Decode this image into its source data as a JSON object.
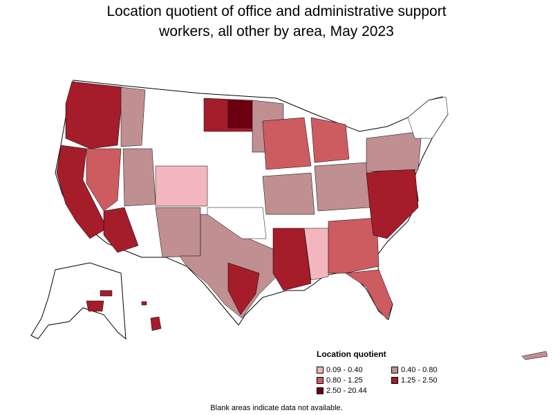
{
  "title_line1": "Location quotient of office and administrative support",
  "title_line2": "workers, all other by area, May 2023",
  "legend": {
    "title": "Location quotient",
    "items": [
      {
        "label": "0.09 - 0.40",
        "color": "#f4b6be"
      },
      {
        "label": "0.40 - 0.80",
        "color": "#bf8f91"
      },
      {
        "label": "0.80 - 1.25",
        "color": "#cc5c60"
      },
      {
        "label": "1.25 - 2.50",
        "color": "#a51c2a"
      },
      {
        "label": "2.50 - 20.44",
        "color": "#6d0010"
      }
    ]
  },
  "footnote": "Blank areas indicate data not available.",
  "colors": {
    "no_data": "#ffffff",
    "border": "#000000"
  }
}
